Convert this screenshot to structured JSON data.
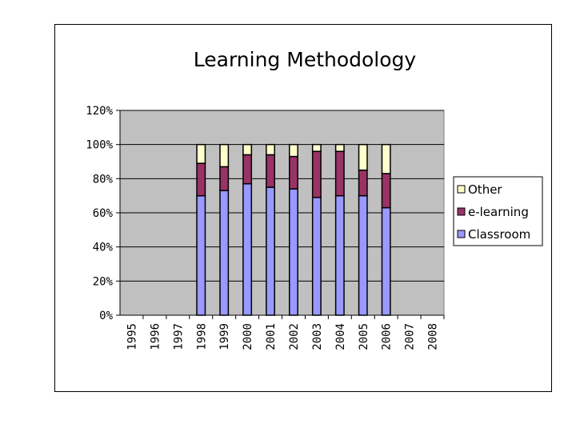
{
  "chart_data": {
    "type": "bar",
    "stacked": true,
    "title": "Learning Methodology",
    "xlabel": "",
    "ylabel": "",
    "ylim": [
      0,
      120
    ],
    "yticks": [
      "0%",
      "20%",
      "40%",
      "60%",
      "80%",
      "100%",
      "120%"
    ],
    "categories": [
      "1995",
      "1996",
      "1997",
      "1998",
      "1999",
      "2000",
      "2001",
      "2002",
      "2003",
      "2004",
      "2005",
      "2006",
      "2007",
      "2008"
    ],
    "series": [
      {
        "name": "Classroom",
        "color": "#9999ff",
        "values": [
          null,
          null,
          null,
          70,
          73,
          77,
          75,
          74,
          69,
          70,
          70,
          63,
          null,
          null
        ]
      },
      {
        "name": "e-learning",
        "color": "#993366",
        "values": [
          null,
          null,
          null,
          19,
          14,
          17,
          19,
          19,
          27,
          26,
          15,
          20,
          null,
          null
        ]
      },
      {
        "name": "Other",
        "color": "#ffffcc",
        "values": [
          null,
          null,
          null,
          11,
          13,
          6,
          6,
          7,
          4,
          4,
          15,
          17,
          null,
          null
        ]
      }
    ],
    "legend": {
      "position": "right",
      "order": [
        "Other",
        "e-learning",
        "Classroom"
      ]
    },
    "grid": true,
    "plot_background": "#c0c0c0"
  }
}
